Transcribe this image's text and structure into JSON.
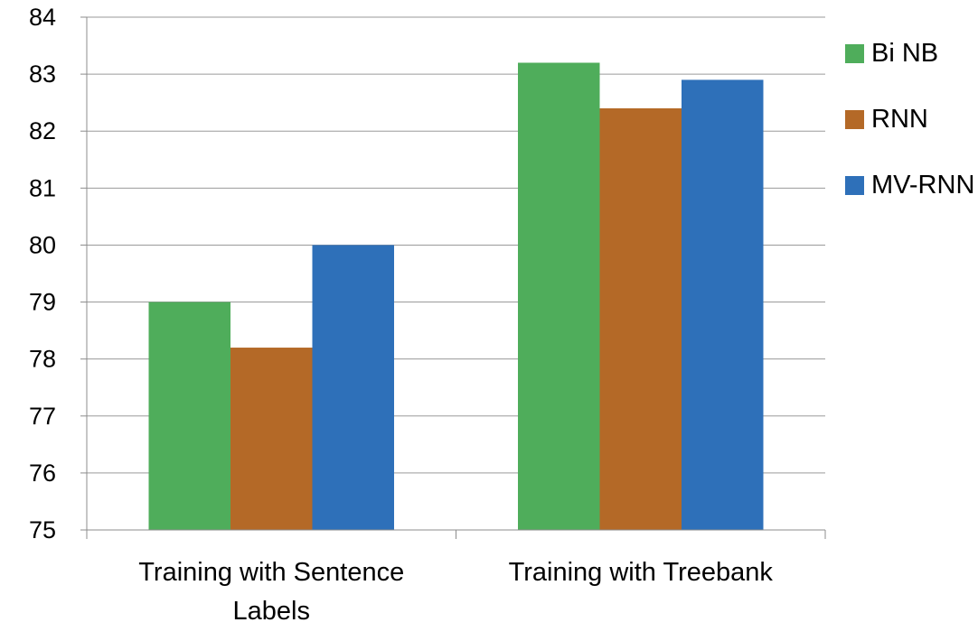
{
  "chart_data": {
    "type": "bar",
    "title": "",
    "xlabel": "",
    "ylabel": "",
    "categories": [
      [
        "Training with Sentence",
        "Labels"
      ],
      [
        "Training with Treebank"
      ]
    ],
    "series": [
      {
        "name": "Bi NB",
        "color": "#4FAD5B",
        "values": [
          79.0,
          83.2
        ]
      },
      {
        "name": "RNN",
        "color": "#B46927",
        "values": [
          78.2,
          82.4
        ]
      },
      {
        "name": "MV-RNN",
        "color": "#2E70B9",
        "values": [
          80.0,
          82.9
        ]
      }
    ],
    "ylim": [
      75,
      84
    ],
    "yticks": [
      75,
      76,
      77,
      78,
      79,
      80,
      81,
      82,
      83,
      84
    ],
    "grid": true,
    "legend_position": "right"
  }
}
